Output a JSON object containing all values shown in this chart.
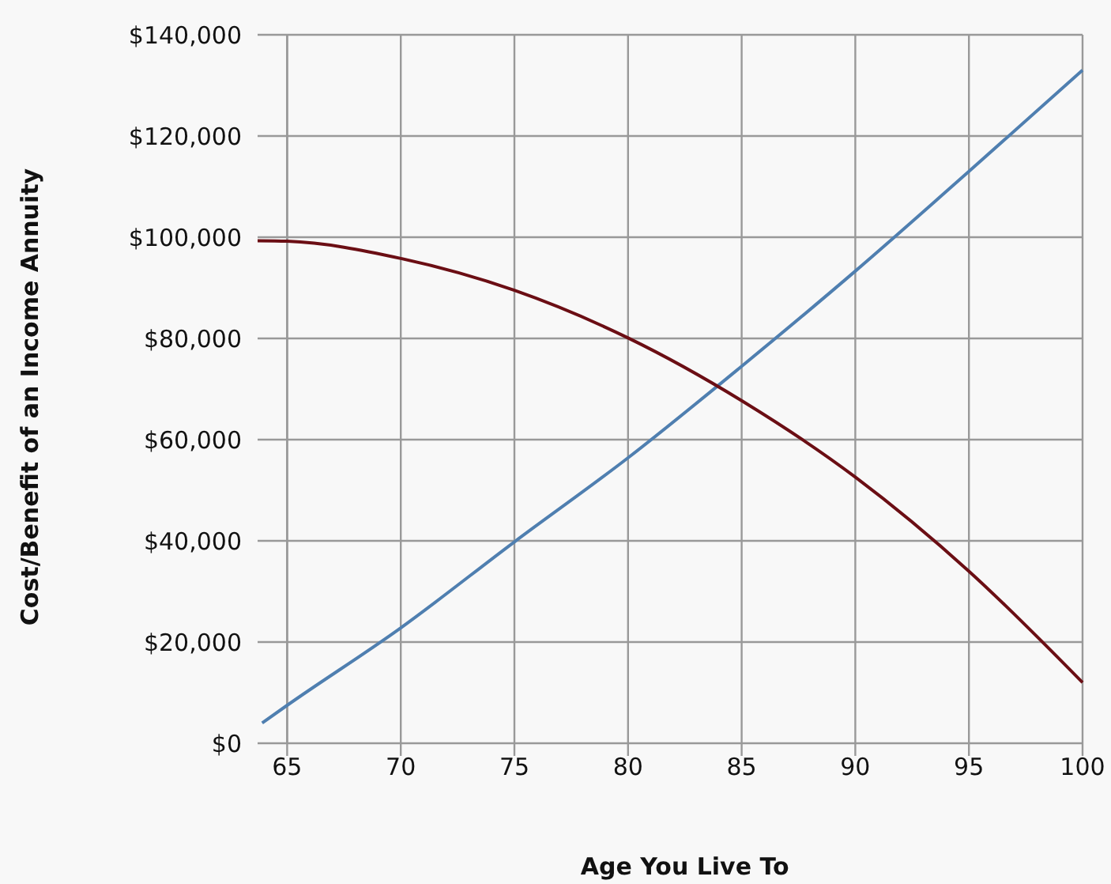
{
  "chart_data": {
    "type": "line",
    "xlabel": "Age You Live To",
    "ylabel": "Cost/Benefit of an Income Annuity",
    "xlim": [
      63.7,
      100
    ],
    "xticks": [
      65,
      70,
      75,
      80,
      85,
      90,
      95,
      100
    ],
    "ylim": [
      0,
      140000
    ],
    "yticks": [
      {
        "value": 0,
        "label": "$0"
      },
      {
        "value": 20000,
        "label": "$20,000"
      },
      {
        "value": 40000,
        "label": "$40,000"
      },
      {
        "value": 60000,
        "label": "$60,000"
      },
      {
        "value": 80000,
        "label": "$80,000"
      },
      {
        "value": 100000,
        "label": "$100,000"
      },
      {
        "value": 120000,
        "label": "$120,000"
      },
      {
        "value": 140000,
        "label": "$140,000"
      }
    ],
    "grid": true,
    "series": [
      {
        "color": "#4f7fb0",
        "x": [
          63.9,
          65,
          70,
          75,
          80,
          85,
          90,
          95,
          100
        ],
        "values": [
          4000,
          7500,
          22800,
          39800,
          56400,
          74500,
          93300,
          113000,
          133000
        ]
      },
      {
        "color": "#6b0e14",
        "x": [
          63.7,
          65,
          70,
          75,
          80,
          85,
          90,
          95,
          100
        ],
        "values": [
          99300,
          99200,
          95800,
          89500,
          80100,
          67700,
          52600,
          34000,
          12000
        ]
      }
    ]
  }
}
